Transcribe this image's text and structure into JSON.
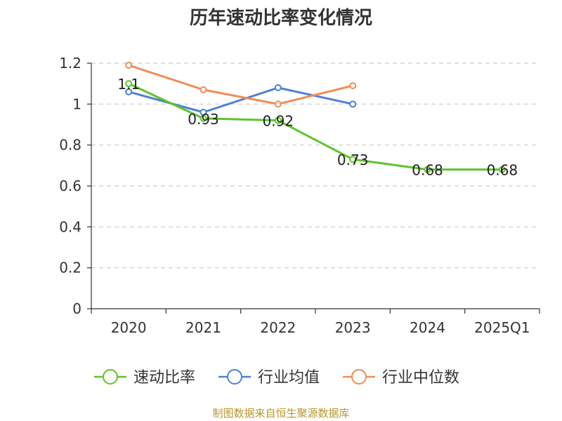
{
  "chart_data": {
    "type": "line",
    "title": "历年速动比率变化情况",
    "categories": [
      "2020",
      "2021",
      "2022",
      "2023",
      "2024",
      "2025Q1"
    ],
    "ylim": [
      0,
      1.2
    ],
    "yticks": [
      "0",
      "0.2",
      "0.4",
      "0.6",
      "0.8",
      "1",
      "1.2"
    ],
    "grid": true,
    "legend_position": "bottom",
    "series": [
      {
        "name": "速动比率",
        "color": "#5ec42a",
        "values": [
          1.1,
          0.93,
          0.92,
          0.73,
          0.68,
          0.68
        ],
        "labels": [
          "1.1",
          "0.93",
          "0.92",
          "0.73",
          "0.68",
          "0.68"
        ]
      },
      {
        "name": "行业均值",
        "color": "#4f7fd8",
        "values": [
          1.06,
          0.96,
          1.08,
          1.0,
          null,
          null
        ]
      },
      {
        "name": "行业中位数",
        "color": "#f28c55",
        "values": [
          1.19,
          1.07,
          1.0,
          1.09,
          null,
          null
        ]
      }
    ]
  },
  "footer": {
    "source": "制图数据来自恒生聚源数据库"
  }
}
